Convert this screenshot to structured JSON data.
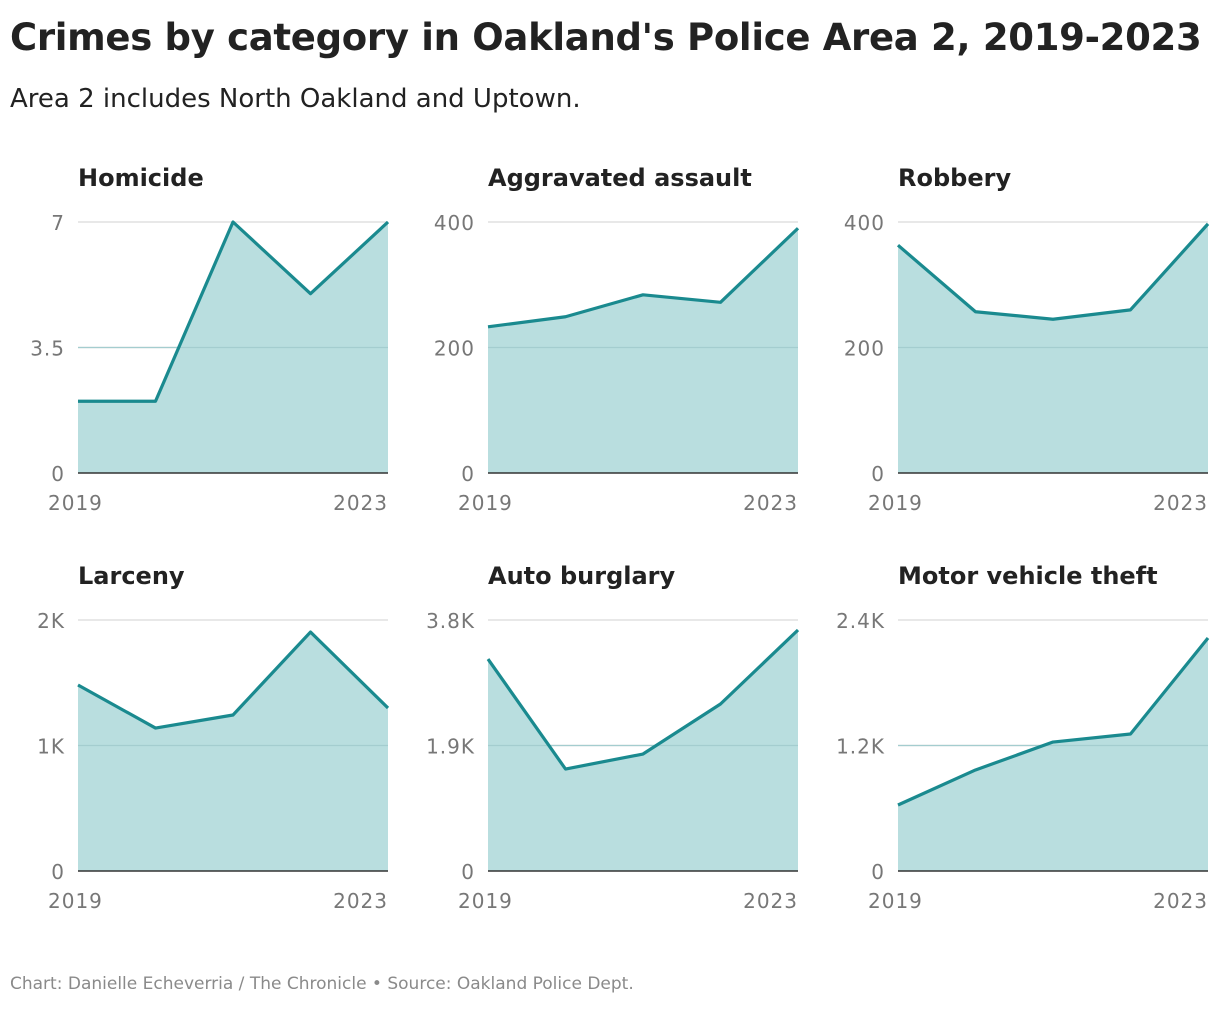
{
  "header": {
    "title": "Crimes by category in Oakland's Police Area 2, 2019-2023",
    "subtitle": "Area 2 includes North Oakland and Uptown."
  },
  "footer": {
    "credit": "Chart: Danielle Echeverria / The Chronicle • Source: Oakland Police Dept."
  },
  "colors": {
    "line": "#1a8a8f",
    "fill": "#b9dedf",
    "grid": "#e0e0e0",
    "axis": "#333333"
  },
  "chart_data": [
    {
      "type": "area",
      "title": "Homicide",
      "x": [
        2019,
        2020,
        2021,
        2022,
        2023
      ],
      "values": [
        2,
        2,
        7,
        5,
        7
      ],
      "ylim": [
        0,
        7
      ],
      "yticks": [
        0,
        3.5,
        7
      ],
      "ytick_labels": [
        "0",
        "3.5",
        "7"
      ],
      "xtick_labels": [
        "2019",
        "2023"
      ],
      "grid": true
    },
    {
      "type": "area",
      "title": "Aggravated assault",
      "x": [
        2019,
        2020,
        2021,
        2022,
        2023
      ],
      "values": [
        233,
        249,
        284,
        272,
        390
      ],
      "ylim": [
        0,
        400
      ],
      "yticks": [
        0,
        200,
        400
      ],
      "ytick_labels": [
        "0",
        "200",
        "400"
      ],
      "xtick_labels": [
        "2019",
        "2023"
      ],
      "grid": true
    },
    {
      "type": "area",
      "title": "Robbery",
      "x": [
        2019,
        2020,
        2021,
        2022,
        2023
      ],
      "values": [
        363,
        257,
        245,
        260,
        397
      ],
      "ylim": [
        0,
        400
      ],
      "yticks": [
        0,
        200,
        400
      ],
      "ytick_labels": [
        "0",
        "200",
        "400"
      ],
      "xtick_labels": [
        "2019",
        "2023"
      ],
      "grid": true
    },
    {
      "type": "area",
      "title": "Larceny",
      "x": [
        2019,
        2020,
        2021,
        2022,
        2023
      ],
      "values": [
        1482,
        1139,
        1243,
        1904,
        1299
      ],
      "ylim": [
        0,
        2000
      ],
      "yticks": [
        0,
        1000,
        2000
      ],
      "ytick_labels": [
        "0",
        "1K",
        "2K"
      ],
      "xtick_labels": [
        "2019",
        "2023"
      ],
      "grid": true
    },
    {
      "type": "area",
      "title": "Auto burglary",
      "x": [
        2019,
        2020,
        2021,
        2022,
        2023
      ],
      "values": [
        3209,
        1544,
        1771,
        2528,
        3649
      ],
      "ylim": [
        0,
        3800
      ],
      "yticks": [
        0,
        1900,
        3800
      ],
      "ytick_labels": [
        "0",
        "1.9K",
        "3.8K"
      ],
      "xtick_labels": [
        "2019",
        "2023"
      ],
      "grid": true
    },
    {
      "type": "area",
      "title": "Motor vehicle theft",
      "x": [
        2019,
        2020,
        2021,
        2022,
        2023
      ],
      "values": [
        631,
        966,
        1233,
        1310,
        2228
      ],
      "ylim": [
        0,
        2400
      ],
      "yticks": [
        0,
        1200,
        2400
      ],
      "ytick_labels": [
        "0",
        "1.2K",
        "2.4K"
      ],
      "xtick_labels": [
        "2019",
        "2023"
      ],
      "grid": true
    }
  ]
}
